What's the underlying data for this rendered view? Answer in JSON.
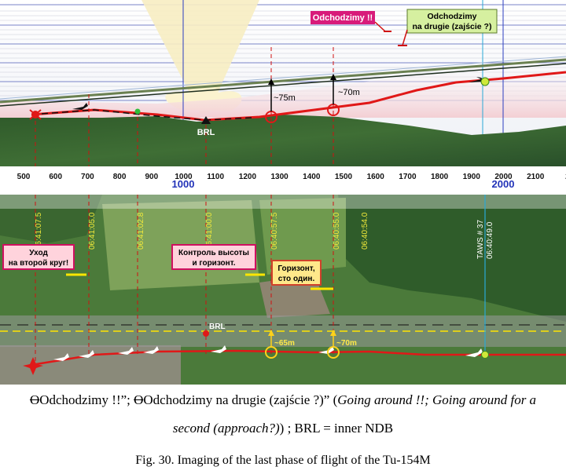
{
  "profile": {
    "callouts": {
      "going_around": "Odchodzimy !!",
      "going_around_second_line1": "Odchodzimy",
      "going_around_second_line2": "na drugie (zajście ?)"
    },
    "brl_label": "BRL",
    "deviation_labels": [
      "~75m",
      "~70m"
    ],
    "axis_ticks": [
      "500",
      "600",
      "700",
      "800",
      "900",
      "1000",
      "1100",
      "1200",
      "1300",
      "1400",
      "1500",
      "1600",
      "1700",
      "1800",
      "1900",
      "2000",
      "2100",
      "2"
    ],
    "axis_major_ticks": [
      "1000",
      "2000"
    ]
  },
  "map": {
    "time_labels": [
      "06:41:07.5",
      "06:41:05.0",
      "06:41:02.8",
      "06:41:00.0",
      "06:40:57.5",
      "06:40:55.0",
      "06:40:54.0"
    ],
    "taws_label_line1": "TAWS # 37",
    "taws_label_line2": "06:40:49.0",
    "box_go_around_line1": "Уход",
    "box_go_around_line2": "на второй круг!",
    "box_control_line1": "Контроль высоты",
    "box_control_line2": "и горизонт.",
    "box_horizon_line1": "Горизонт,",
    "box_horizon_line2": "сто один.",
    "brl_label": "BRL",
    "deviation_labels": [
      "~65m",
      "~70m"
    ]
  },
  "caption": {
    "quote1": "Odchodzimy !!”; ",
    "quote2": "Odchodzimy na drugie (zajście ?)” (",
    "translation": "Going around !!; Going around for a second (approach?)",
    "tail": ") ; BRL = inner NDB",
    "figure": "Fig. 30. Imaging of the last phase of flight of the Tu-154M"
  }
}
